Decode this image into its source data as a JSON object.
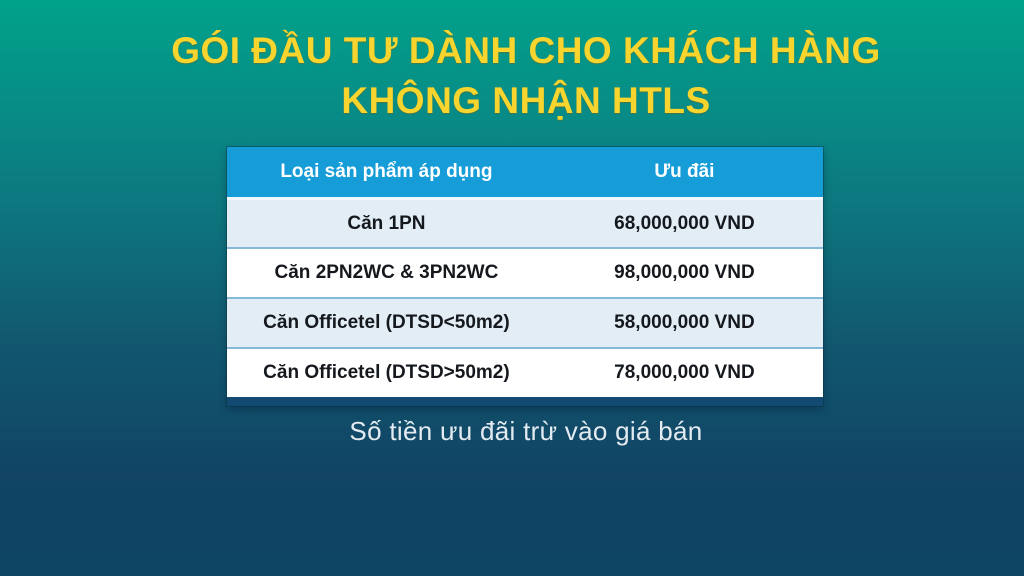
{
  "slide": {
    "title_line1": "GÓI ĐẦU TƯ DÀNH CHO KHÁCH HÀNG",
    "title_line2": "KHÔNG NHẬN HTLS",
    "footer_note": "Số tiền ưu đãi trừ vào giá bán"
  },
  "table": {
    "columns": [
      "Loại sản phẩm áp dụng",
      "Ưu đãi"
    ],
    "rows": [
      {
        "product": "Căn 1PN",
        "offer": "68,000,000 VND"
      },
      {
        "product": "Căn 2PN2WC & 3PN2WC",
        "offer": "98,000,000 VND"
      },
      {
        "product": "Căn Officetel (DTSD<50m2)",
        "offer": "58,000,000 VND"
      },
      {
        "product": "Căn Officetel (DTSD>50m2)",
        "offer": "78,000,000 VND"
      }
    ]
  },
  "colors": {
    "background_top": "#01a28a",
    "background_bottom": "#0e4464",
    "title_yellow": "#f7d42e",
    "header_blue": "#169dd8",
    "row_light_blue": "#e2edf6",
    "row_white": "#ffffff",
    "row_separator_blue": "#85b9d8",
    "table_bottom_bar": "#134a72",
    "footer_text": "#e3ebf1",
    "cell_text": "#15191e"
  }
}
